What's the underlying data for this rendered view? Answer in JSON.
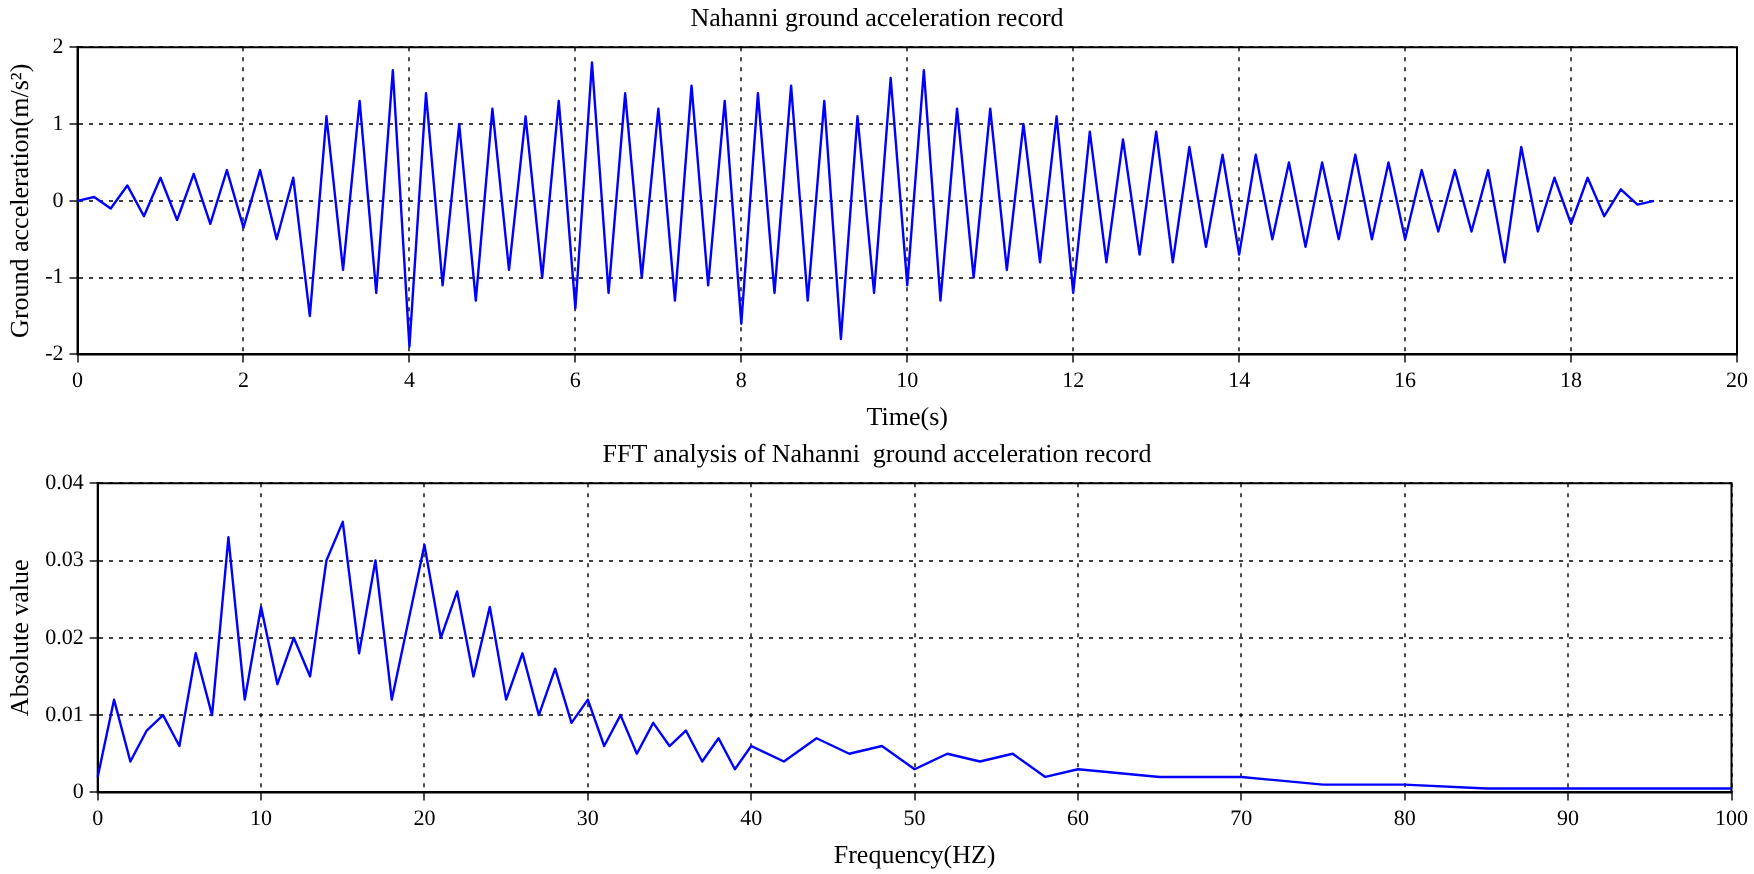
{
  "chart_data": [
    {
      "type": "line",
      "title": "Nahanni ground acceleration record",
      "xlabel": "Time(s)",
      "ylabel": "Ground acceleration(m/s²)",
      "color": "#0000ff",
      "grid": true,
      "xlim": [
        0,
        20
      ],
      "xticks": [
        0,
        2,
        4,
        6,
        8,
        10,
        12,
        14,
        16,
        18,
        20
      ],
      "ylim": [
        -2,
        2
      ],
      "yticks": [
        -2,
        -1,
        0,
        1,
        2
      ],
      "x": [
        0,
        0.2,
        0.4,
        0.6,
        0.8,
        1,
        1.2,
        1.4,
        1.6,
        1.8,
        2,
        2.2,
        2.4,
        2.6,
        2.8,
        3,
        3.2,
        3.4,
        3.6,
        3.8,
        4,
        4.2,
        4.4,
        4.6,
        4.8,
        5,
        5.2,
        5.4,
        5.6,
        5.8,
        6,
        6.2,
        6.4,
        6.6,
        6.8,
        7,
        7.2,
        7.4,
        7.6,
        7.8,
        8,
        8.2,
        8.4,
        8.6,
        8.8,
        9,
        9.2,
        9.4,
        9.6,
        9.8,
        10,
        10.2,
        10.4,
        10.6,
        10.8,
        11,
        11.2,
        11.4,
        11.6,
        11.8,
        12,
        12.2,
        12.4,
        12.6,
        12.8,
        13,
        13.2,
        13.4,
        13.6,
        13.8,
        14,
        14.2,
        14.4,
        14.6,
        14.8,
        15,
        15.2,
        15.4,
        15.6,
        15.8,
        16,
        16.2,
        16.4,
        16.6,
        16.8,
        17,
        17.2,
        17.4,
        17.6,
        17.8,
        18,
        18.2,
        18.4,
        18.6,
        18.8,
        19
      ],
      "values": [
        0,
        0.05,
        -0.1,
        0.2,
        -0.2,
        0.3,
        -0.25,
        0.35,
        -0.3,
        0.4,
        -0.35,
        0.4,
        -0.5,
        0.3,
        -1.5,
        1.1,
        -0.9,
        1.3,
        -1.2,
        1.7,
        -1.9,
        1.4,
        -1.1,
        1,
        -1.3,
        1.2,
        -0.9,
        1.1,
        -1,
        1.3,
        -1.4,
        1.8,
        -1.2,
        1.4,
        -1,
        1.2,
        -1.3,
        1.5,
        -1.1,
        1.3,
        -1.6,
        1.4,
        -1.2,
        1.5,
        -1.3,
        1.3,
        -1.8,
        1.1,
        -1.2,
        1.6,
        -1.1,
        1.7,
        -1.3,
        1.2,
        -1,
        1.2,
        -0.9,
        1,
        -0.8,
        1.1,
        -1.2,
        0.9,
        -0.8,
        0.8,
        -0.7,
        0.9,
        -0.8,
        0.7,
        -0.6,
        0.6,
        -0.7,
        0.6,
        -0.5,
        0.5,
        -0.6,
        0.5,
        -0.5,
        0.6,
        -0.5,
        0.5,
        -0.5,
        0.4,
        -0.4,
        0.4,
        -0.4,
        0.4,
        -0.8,
        0.7,
        -0.4,
        0.3,
        -0.3,
        0.3,
        -0.2,
        0.15,
        -0.05,
        0
      ]
    },
    {
      "type": "line",
      "title": "FFT analysis of Nahanni  ground acceleration record",
      "xlabel": "Frequency(HZ)",
      "ylabel": "Absolute value",
      "color": "#0000ff",
      "grid": true,
      "xlim": [
        0,
        100
      ],
      "xticks": [
        0,
        10,
        20,
        30,
        40,
        50,
        60,
        70,
        80,
        90,
        100
      ],
      "ylim": [
        0,
        0.04
      ],
      "yticks": [
        0,
        0.01,
        0.02,
        0.03,
        0.04
      ],
      "x": [
        0,
        1,
        2,
        3,
        4,
        5,
        6,
        7,
        8,
        9,
        10,
        11,
        12,
        13,
        14,
        15,
        16,
        17,
        18,
        19,
        20,
        21,
        22,
        23,
        24,
        25,
        26,
        27,
        28,
        29,
        30,
        31,
        32,
        33,
        34,
        35,
        36,
        37,
        38,
        39,
        40,
        42,
        44,
        46,
        48,
        50,
        52,
        54,
        56,
        58,
        60,
        65,
        70,
        75,
        80,
        85,
        90,
        95,
        100
      ],
      "values": [
        0.002,
        0.012,
        0.004,
        0.008,
        0.01,
        0.006,
        0.018,
        0.01,
        0.033,
        0.012,
        0.024,
        0.014,
        0.02,
        0.015,
        0.03,
        0.035,
        0.018,
        0.03,
        0.012,
        0.022,
        0.032,
        0.02,
        0.026,
        0.015,
        0.024,
        0.012,
        0.018,
        0.01,
        0.016,
        0.009,
        0.012,
        0.006,
        0.01,
        0.005,
        0.009,
        0.006,
        0.008,
        0.004,
        0.007,
        0.003,
        0.006,
        0.004,
        0.007,
        0.005,
        0.006,
        0.003,
        0.005,
        0.004,
        0.005,
        0.002,
        0.003,
        0.002,
        0.002,
        0.001,
        0.001,
        0.0005,
        0.0005,
        0.0005,
        0.0005
      ]
    }
  ]
}
